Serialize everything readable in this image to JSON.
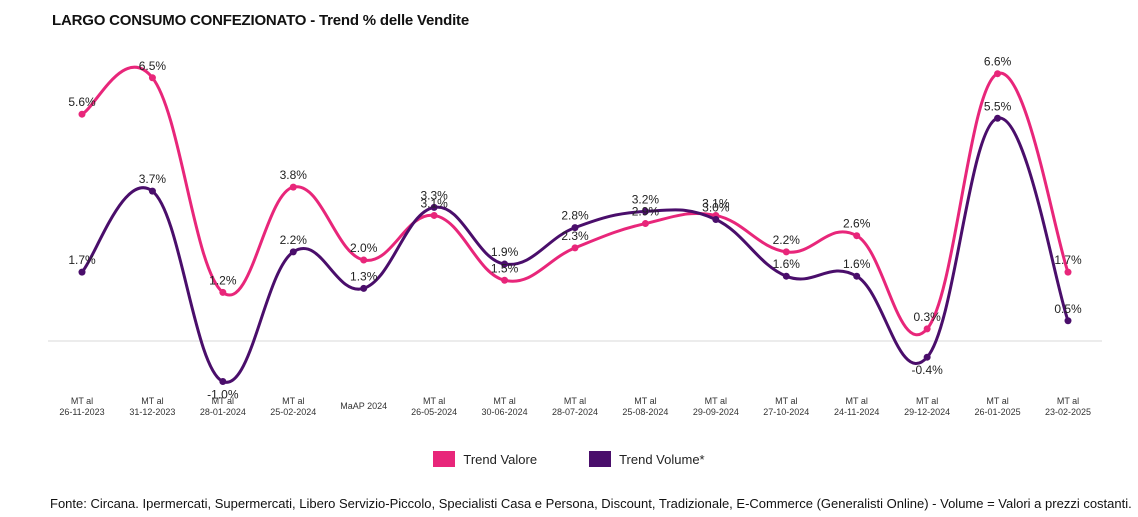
{
  "title": "LARGO CONSUMO CONFEZIONATO - Trend % delle Vendite",
  "source": "Fonte: Circana. Ipermercati, Supermercati, Libero Servizio-Piccolo, Specialisti Casa e Persona, Discount, Tradizionale, E-Commerce (Generalisti Online) - Volume = Valori a prezzi costanti.",
  "chart_data": {
    "type": "line",
    "title": "LARGO CONSUMO CONFEZIONATO - Trend % delle Vendite",
    "categories": [
      [
        "MT al",
        "26-11-2023"
      ],
      [
        "MT al",
        "31-12-2023"
      ],
      [
        "MT al",
        "28-01-2024"
      ],
      [
        "MT al",
        "25-02-2024"
      ],
      [
        "MaAP 2024"
      ],
      [
        "MT al",
        "26-05-2024"
      ],
      [
        "MT al",
        "30-06-2024"
      ],
      [
        "MT al",
        "28-07-2024"
      ],
      [
        "MT al",
        "25-08-2024"
      ],
      [
        "MT al",
        "29-09-2024"
      ],
      [
        "MT al",
        "27-10-2024"
      ],
      [
        "MT al",
        "24-11-2024"
      ],
      [
        "MT al",
        "29-12-2024"
      ],
      [
        "MT al",
        "26-01-2025"
      ],
      [
        "MT al",
        "23-02-2025"
      ]
    ],
    "series": [
      {
        "name": "Trend Valore",
        "color": "#e8267a",
        "values": [
          5.6,
          6.5,
          1.2,
          3.8,
          2.0,
          3.1,
          1.5,
          2.3,
          2.9,
          3.1,
          2.2,
          2.6,
          0.3,
          6.6,
          1.7
        ],
        "labels": [
          "5.6%",
          "6.5%",
          "1.2%",
          "3.8%",
          "2.0%",
          "3.1%",
          "1.5%",
          "2.3%",
          "2.9%",
          "3.1%",
          "2.2%",
          "2.6%",
          "0.3%",
          "6.6%",
          "1.7%"
        ]
      },
      {
        "name": "Trend Volume*",
        "color": "#4a0e6b",
        "values": [
          1.7,
          3.7,
          -1.0,
          2.2,
          1.3,
          3.3,
          1.9,
          2.8,
          3.2,
          3.0,
          1.6,
          1.6,
          -0.4,
          5.5,
          0.5
        ],
        "labels": [
          "1.7%",
          "3.7%",
          "-1.0%",
          "2.2%",
          "1.3%",
          "3.3%",
          "1.9%",
          "2.8%",
          "3.2%",
          "3.0%",
          "1.6%",
          "1.6%",
          "-0.4%",
          "5.5%",
          "0.5%"
        ]
      }
    ],
    "ylim": [
      -1.5,
      7.5
    ],
    "grid": false,
    "legend_position": "bottom"
  }
}
